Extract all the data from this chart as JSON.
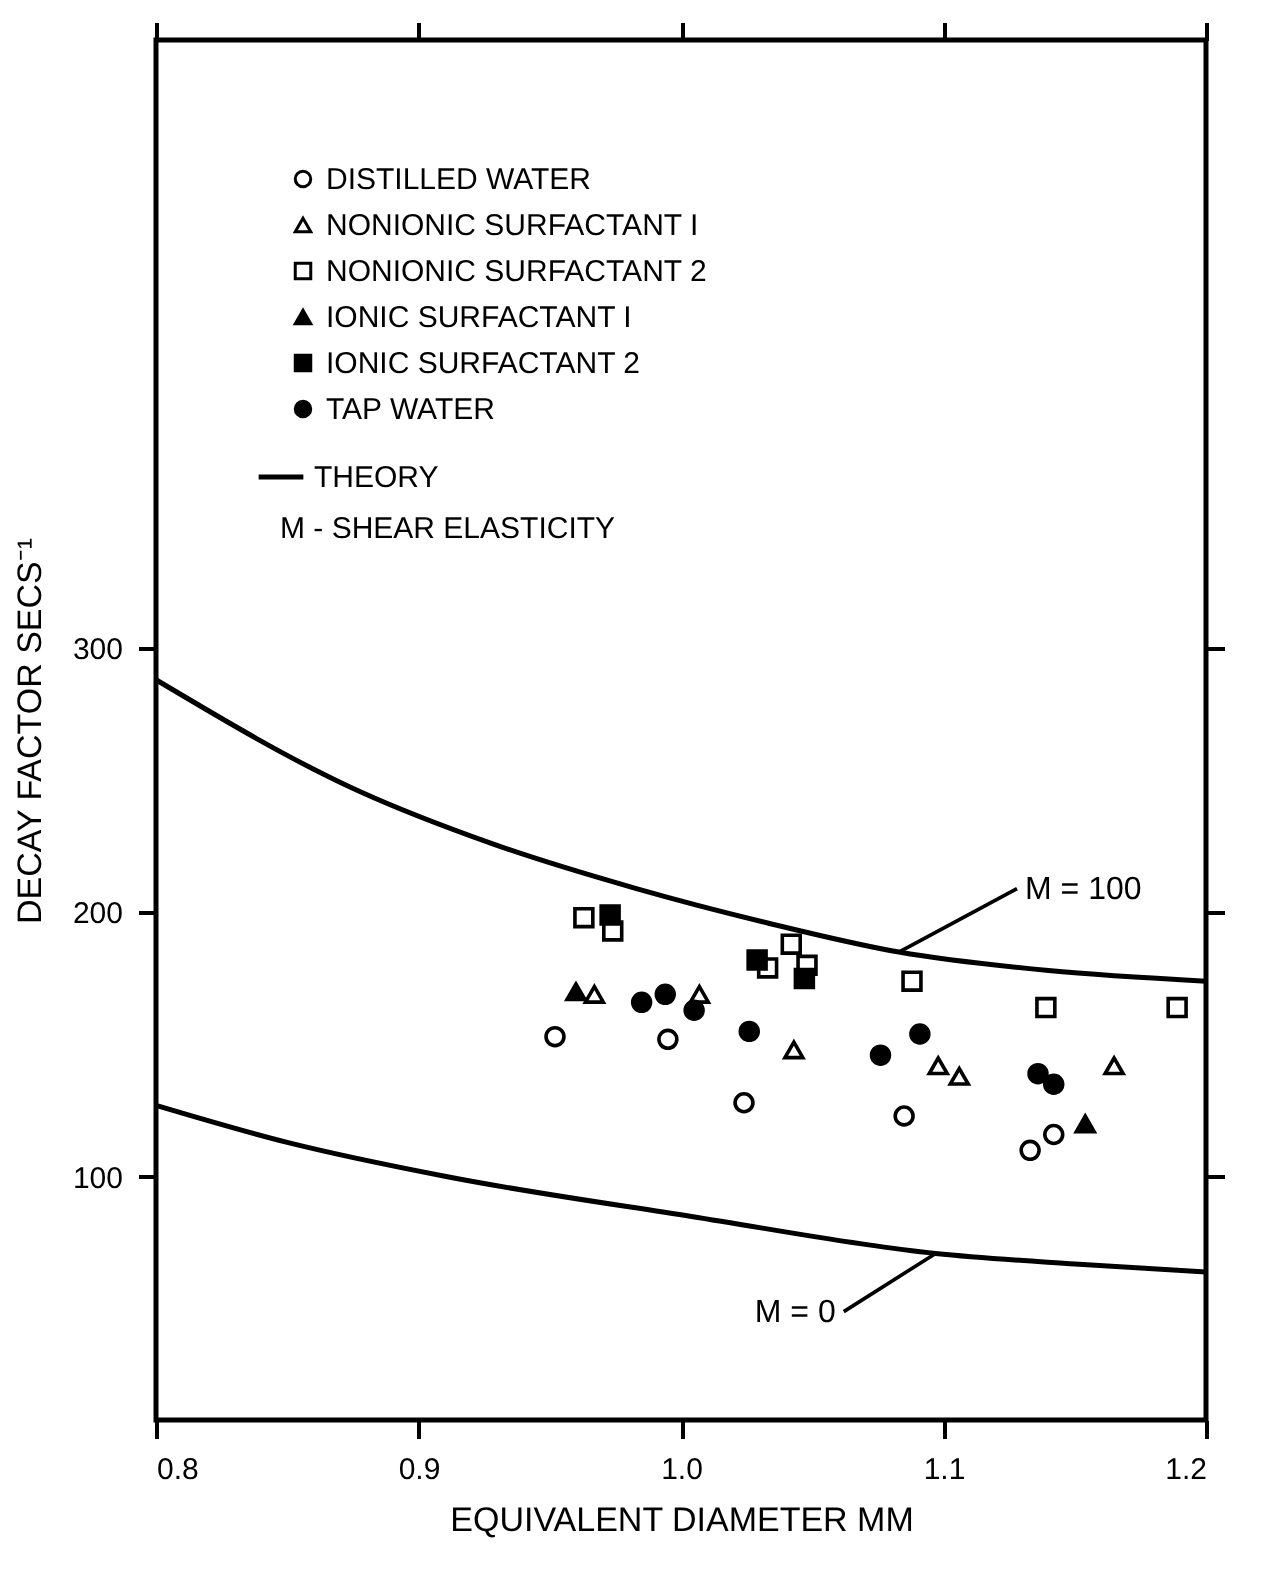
{
  "chart_data": {
    "type": "scatter",
    "xlabel": "EQUIVALENT DIAMETER MM",
    "ylabel": "DECAY FACTOR SECS⁻¹",
    "xlim": [
      0.8,
      1.2
    ],
    "xticks": [
      0.8,
      0.9,
      {
        "value": 1.0,
        "label": "1.0"
      },
      1.1,
      1.2
    ],
    "ylim": [
      8,
      530
    ],
    "yticks": [
      100,
      200,
      300
    ],
    "grid": false,
    "legend": "top left",
    "series": [
      {
        "name": "DISTILLED WATER",
        "marker": "circle",
        "color": "#ffffff",
        "x": [
          0.952,
          0.995,
          1.024,
          1.085,
          1.133,
          1.142
        ],
        "values": [
          153,
          152,
          128,
          123,
          110,
          116
        ]
      },
      {
        "name": "NONIONIC SURFACTANT I",
        "marker": "triangle",
        "color": "#ffffff",
        "x": [
          0.967,
          1.007,
          1.043,
          1.098,
          1.106,
          1.165
        ],
        "values": [
          169,
          169,
          148,
          142,
          138,
          142
        ]
      },
      {
        "name": "NONIONIC SURFACTANT 2",
        "marker": "square",
        "color": "#ffffff",
        "x": [
          0.963,
          0.974,
          1.033,
          1.042,
          1.048,
          1.088,
          1.139,
          1.189
        ],
        "values": [
          198,
          193,
          179,
          188,
          180,
          174,
          164,
          164
        ]
      },
      {
        "name": "IONIC SURFACTANT I",
        "marker": "triangle",
        "color": "#000000",
        "x": [
          0.96,
          1.154
        ],
        "values": [
          170,
          120
        ]
      },
      {
        "name": "IONIC SURFACTANT 2",
        "marker": "square",
        "color": "#000000",
        "x": [
          0.973,
          1.029,
          1.047
        ],
        "values": [
          199,
          182,
          175
        ]
      },
      {
        "name": "TAP WATER",
        "marker": "circle",
        "color": "#000000",
        "x": [
          0.985,
          0.994,
          1.005,
          1.026,
          1.076,
          1.091,
          1.136,
          1.142
        ],
        "values": [
          166,
          169,
          163,
          155,
          146,
          154,
          139,
          135
        ]
      },
      {
        "name": "THEORY",
        "type": "line",
        "marker": "none",
        "line_style": "solid",
        "color": "#000000",
        "x": [
          0.8,
          0.877,
          0.928,
          0.983,
          1.033,
          1.083,
          1.14,
          1.2
        ],
        "values": [
          288,
          246,
          226,
          209,
          196,
          185,
          178,
          174
        ]
      },
      {
        "type": "line",
        "marker": "none",
        "line_style": "solid",
        "color": "#000000",
        "x": [
          0.8,
          0.85,
          0.911,
          1.004,
          1.097,
          1.15,
          1.2
        ],
        "values": [
          127,
          113,
          100,
          85,
          71,
          67,
          64
        ]
      }
    ],
    "annotations": [
      "M - SHEAR ELASTICITY",
      {
        "text": "M = 100",
        "x": 1.083,
        "y": 185
      },
      {
        "text": "M = 0",
        "x": 1.097,
        "y": 71
      }
    ]
  }
}
